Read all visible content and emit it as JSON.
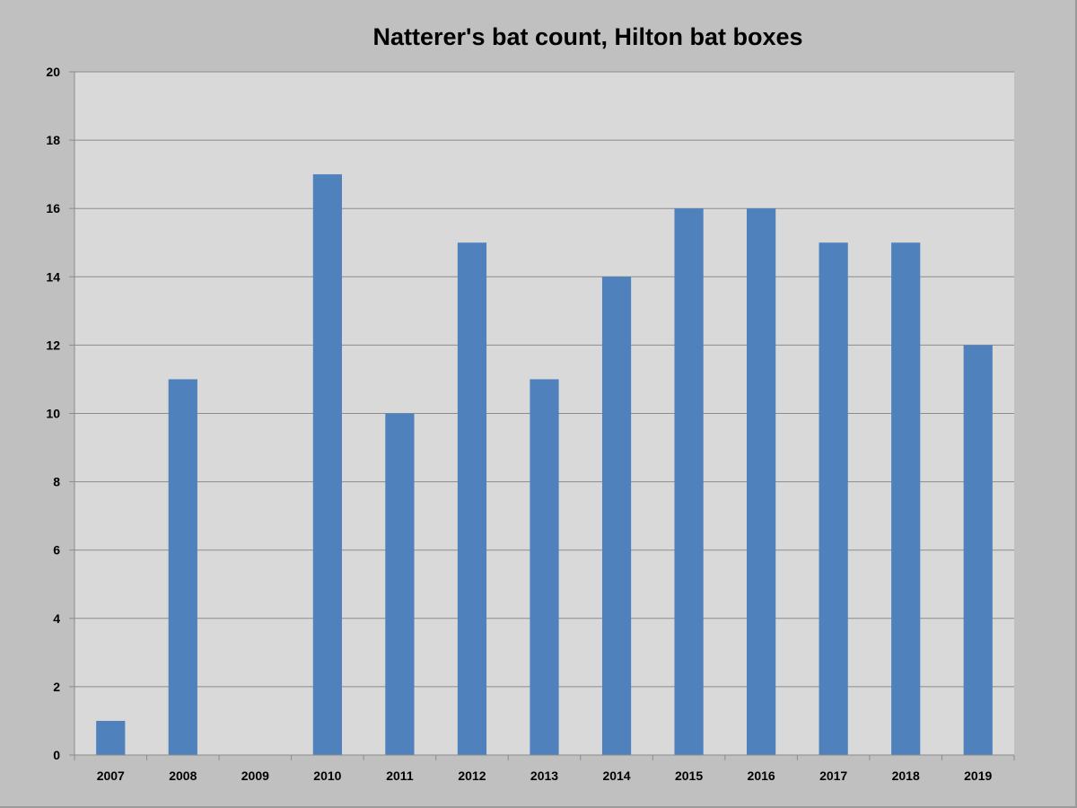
{
  "chart_data": {
    "type": "bar",
    "title": "Natterer's bat count, Hilton bat boxes",
    "xlabel": "",
    "ylabel": "",
    "categories": [
      "2007",
      "2008",
      "2009",
      "2010",
      "2011",
      "2012",
      "2013",
      "2014",
      "2015",
      "2016",
      "2017",
      "2018",
      "2019"
    ],
    "values": [
      1,
      11,
      0,
      17,
      10,
      15,
      11,
      14,
      16,
      16,
      15,
      15,
      12
    ],
    "ylim": [
      0,
      20
    ],
    "yticks": [
      0,
      2,
      4,
      6,
      8,
      10,
      12,
      14,
      16,
      18,
      20
    ],
    "grid": true,
    "legend": "none",
    "colors": {
      "bar": "#4f81bd",
      "plot_background": "#d9d9d9",
      "chart_background": "#c0c0c0",
      "gridline": "#8c8c8c"
    }
  }
}
